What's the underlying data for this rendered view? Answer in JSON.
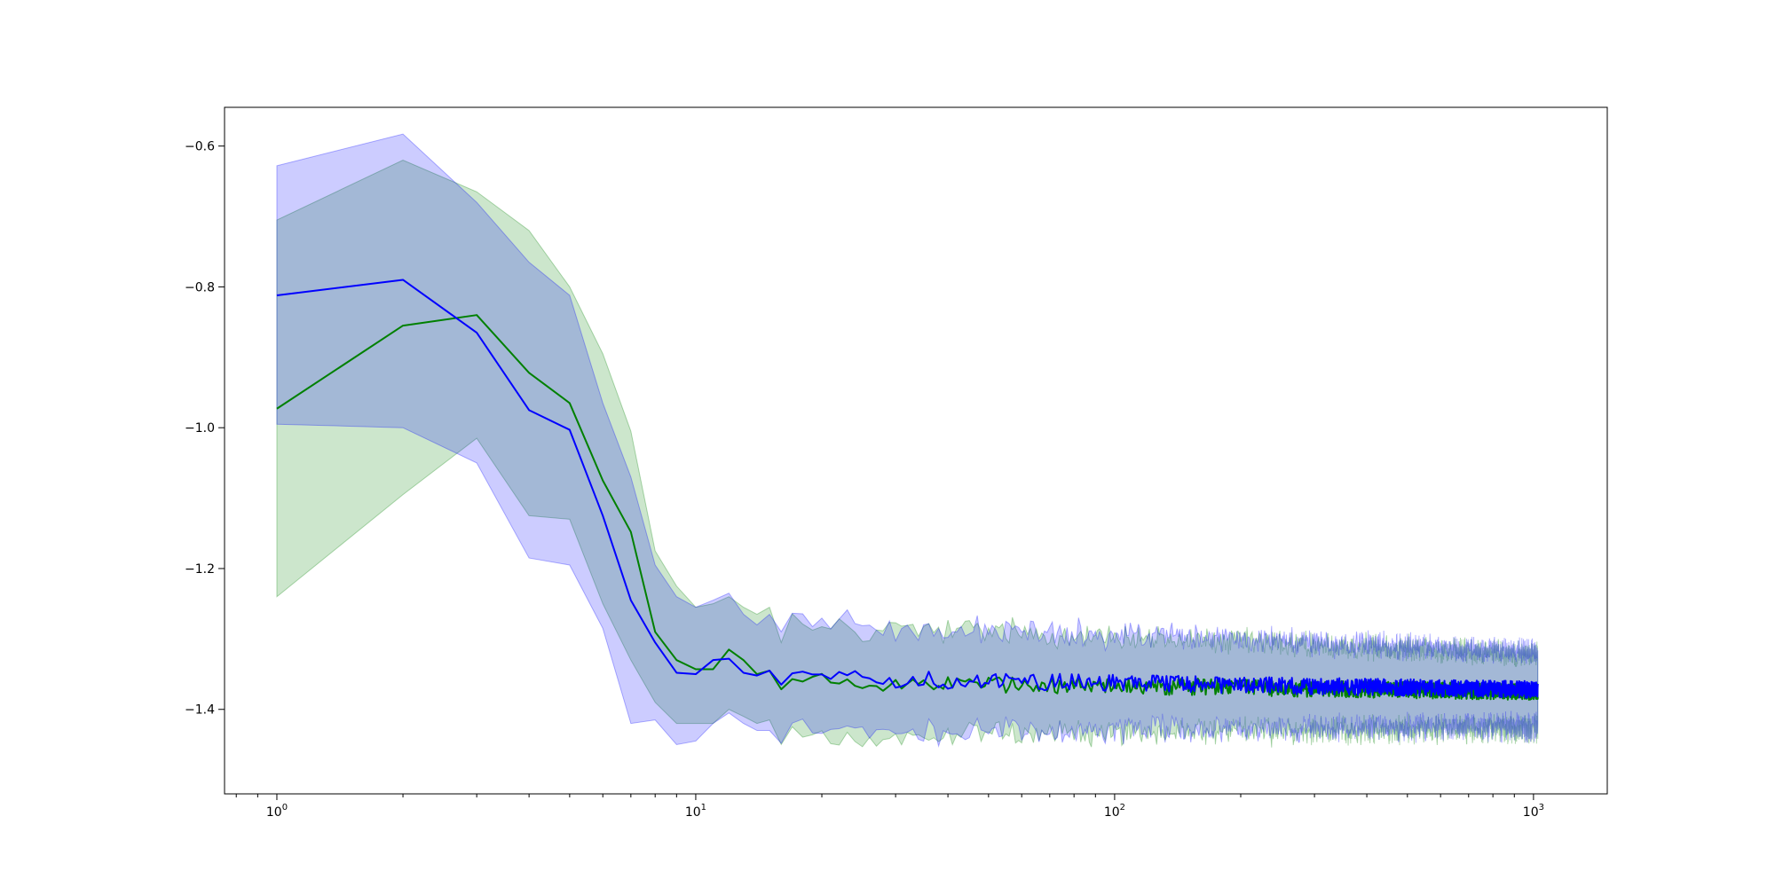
{
  "chart_data": {
    "type": "line",
    "xscale": "log",
    "xlim": [
      0.75,
      1500
    ],
    "ylim": [
      -1.52,
      -0.545
    ],
    "grid": false,
    "title": "",
    "xlabel": "",
    "ylabel": "",
    "xticks": [
      {
        "value": 1,
        "base": "10",
        "exp": "0"
      },
      {
        "value": 10,
        "base": "10",
        "exp": "1"
      },
      {
        "value": 100,
        "base": "10",
        "exp": "2"
      },
      {
        "value": 1000,
        "base": "10",
        "exp": "3"
      }
    ],
    "yticks": [
      {
        "value": -0.6,
        "label": "−0.6"
      },
      {
        "value": -0.8,
        "label": "−0.8"
      },
      {
        "value": -1.0,
        "label": "−1.0"
      },
      {
        "value": -1.2,
        "label": "−1.2"
      },
      {
        "value": -1.4,
        "label": "−1.4"
      }
    ],
    "series": [
      {
        "color": "#008000",
        "band_color": "#008000",
        "band_opacity": 0.2,
        "head": {
          "x": [
            1,
            2,
            3,
            4,
            5,
            6,
            7,
            8,
            9,
            10,
            11,
            12,
            13,
            14,
            15
          ],
          "y": [
            -0.973,
            -0.855,
            -0.84,
            -0.922,
            -0.965,
            -1.075,
            -1.148,
            -1.29,
            -1.33,
            -1.343,
            -1.343,
            -1.315,
            -1.33,
            -1.35,
            -1.345
          ],
          "y_low": [
            -1.24,
            -1.095,
            -1.015,
            -1.125,
            -1.13,
            -1.25,
            -1.33,
            -1.39,
            -1.42,
            -1.42,
            -1.42,
            -1.4,
            -1.41,
            -1.42,
            -1.415
          ],
          "y_high": [
            -0.705,
            -0.62,
            -0.665,
            -0.72,
            -0.8,
            -0.895,
            -1.005,
            -1.175,
            -1.225,
            -1.255,
            -1.25,
            -1.24,
            -1.255,
            -1.265,
            -1.255
          ]
        },
        "tail": {
          "x_start": 16,
          "x_end": 1024,
          "mean": -1.36,
          "mean_end": -1.375,
          "noise": 0.012,
          "band_halfwidth": 0.075,
          "band_halfwidth_end": 0.05,
          "band_noise": 0.03
        }
      },
      {
        "color": "#0000ff",
        "band_color": "#0000ff",
        "band_opacity": 0.2,
        "head": {
          "x": [
            1,
            2,
            3,
            4,
            5,
            6,
            7,
            8,
            9,
            10,
            11,
            12,
            13,
            14,
            15
          ],
          "y": [
            -0.812,
            -0.79,
            -0.865,
            -0.975,
            -1.003,
            -1.125,
            -1.245,
            -1.305,
            -1.348,
            -1.35,
            -1.33,
            -1.328,
            -1.348,
            -1.352,
            -1.345
          ],
          "y_low": [
            -0.995,
            -1.0,
            -1.05,
            -1.185,
            -1.195,
            -1.285,
            -1.42,
            -1.415,
            -1.45,
            -1.445,
            -1.42,
            -1.405,
            -1.42,
            -1.43,
            -1.43
          ],
          "y_high": [
            -0.628,
            -0.583,
            -0.68,
            -0.765,
            -0.812,
            -0.965,
            -1.07,
            -1.195,
            -1.24,
            -1.255,
            -1.245,
            -1.235,
            -1.265,
            -1.28,
            -1.265
          ]
        },
        "tail": {
          "x_start": 16,
          "x_end": 1024,
          "mean": -1.355,
          "mean_end": -1.372,
          "noise": 0.012,
          "band_halfwidth": 0.075,
          "band_halfwidth_end": 0.05,
          "band_noise": 0.03
        }
      }
    ]
  }
}
